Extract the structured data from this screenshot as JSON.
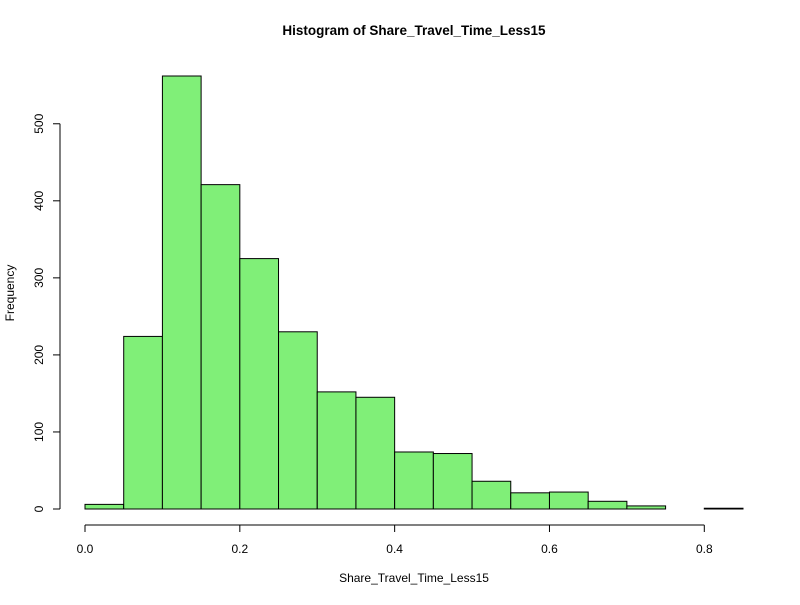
{
  "chart_data": {
    "type": "bar",
    "title": "Histogram of Share_Travel_Time_Less15",
    "xlabel": "Share_Travel_Time_Less15",
    "ylabel": "Frequency",
    "bin_edges": [
      0.0,
      0.05,
      0.1,
      0.15,
      0.2,
      0.25,
      0.3,
      0.35,
      0.4,
      0.45,
      0.5,
      0.55,
      0.6,
      0.65,
      0.7,
      0.75,
      0.8,
      0.85
    ],
    "values": [
      6,
      224,
      562,
      421,
      325,
      230,
      152,
      145,
      74,
      72,
      36,
      21,
      22,
      10,
      4,
      0,
      1
    ],
    "xlim": [
      0.0,
      0.85
    ],
    "ylim": [
      0,
      562
    ],
    "x_ticks": [
      0.0,
      0.2,
      0.4,
      0.6,
      0.8
    ],
    "x_tick_labels": [
      "0.0",
      "0.2",
      "0.4",
      "0.6",
      "0.8"
    ],
    "y_ticks": [
      0,
      100,
      200,
      300,
      400,
      500
    ],
    "y_tick_labels": [
      "0",
      "100",
      "200",
      "300",
      "400",
      "500"
    ],
    "bar_color": "#80ef78",
    "bar_edge_color": "#000000",
    "grid": false
  }
}
